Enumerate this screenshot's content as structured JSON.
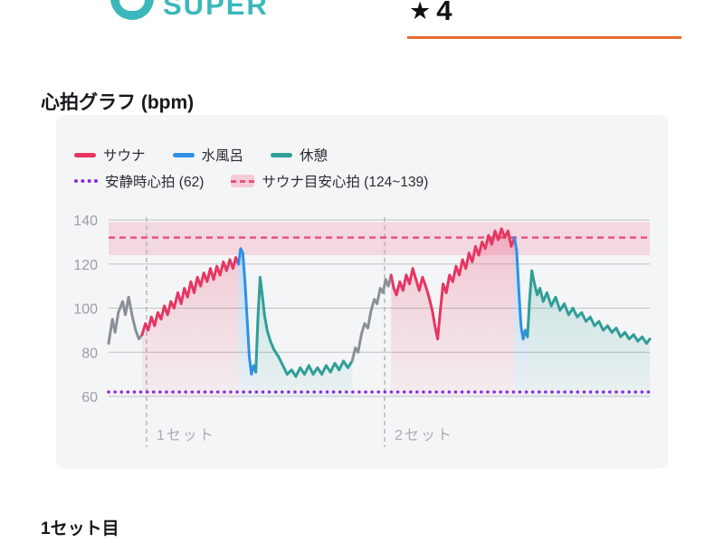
{
  "header": {
    "brand": "SUPER",
    "rating_star": "★",
    "rating_value": "4"
  },
  "sections": {
    "heart_rate_title": "心拍グラフ (bpm)",
    "set1_title": "1セット目"
  },
  "legend": {
    "row1": [
      {
        "label": "サウナ"
      },
      {
        "label": "水風呂"
      },
      {
        "label": "休憩"
      }
    ],
    "row2": [
      {
        "label": "安静時心拍 (62)"
      },
      {
        "label": "サウナ目安心拍 (124~139)"
      }
    ]
  },
  "colors": {
    "sauna": "#e73562",
    "water": "#2f8fe8",
    "rest": "#2f9e97",
    "gray": "#8b9097",
    "resting_line": "#8a2be2",
    "target_line": "#e8537a",
    "target_band": "#f2bed0",
    "accent_orange": "#e96a2d",
    "brand_teal": "#3ab8bc"
  },
  "chart_data": {
    "type": "line",
    "title": "心拍グラフ (bpm)",
    "ylabel": "bpm",
    "ylim": [
      60,
      140
    ],
    "xlim": [
      0,
      100
    ],
    "yticks": [
      60,
      80,
      100,
      120,
      140
    ],
    "resting_hr": 62,
    "target_range": {
      "min": 124,
      "max": 139,
      "mid_line": 132
    },
    "dividers": [
      {
        "x": 7,
        "label": "1セット"
      },
      {
        "x": 51,
        "label": "2セット"
      }
    ],
    "segments": [
      {
        "phase": "warmup",
        "color_key": "gray",
        "fill": false,
        "points": [
          [
            0,
            84
          ],
          [
            0.7,
            95
          ],
          [
            1.2,
            89
          ],
          [
            1.8,
            98
          ],
          [
            2.6,
            103
          ],
          [
            3.1,
            97
          ],
          [
            3.7,
            105
          ],
          [
            4.4,
            96
          ],
          [
            5,
            90
          ],
          [
            5.6,
            86
          ],
          [
            6.2,
            88
          ]
        ]
      },
      {
        "phase": "sauna-1",
        "color_key": "sauna",
        "fill": true,
        "points": [
          [
            6.2,
            88
          ],
          [
            6.8,
            93
          ],
          [
            7.3,
            90
          ],
          [
            7.9,
            96
          ],
          [
            8.5,
            92
          ],
          [
            9.1,
            98
          ],
          [
            9.7,
            95
          ],
          [
            10.3,
            101
          ],
          [
            10.9,
            97
          ],
          [
            11.5,
            103
          ],
          [
            12.1,
            100
          ],
          [
            12.8,
            107
          ],
          [
            13.4,
            102
          ],
          [
            14,
            109
          ],
          [
            14.6,
            105
          ],
          [
            15.2,
            112
          ],
          [
            15.8,
            107
          ],
          [
            16.4,
            114
          ],
          [
            17,
            110
          ],
          [
            17.6,
            116
          ],
          [
            18.2,
            112
          ],
          [
            18.8,
            118
          ],
          [
            19.4,
            113
          ],
          [
            20,
            119
          ],
          [
            20.6,
            115
          ],
          [
            21.2,
            121
          ],
          [
            21.8,
            117
          ],
          [
            22.4,
            122
          ],
          [
            23,
            118
          ],
          [
            23.5,
            123
          ],
          [
            24,
            120
          ]
        ]
      },
      {
        "phase": "water-1",
        "color_key": "water",
        "fill": true,
        "points": [
          [
            24,
            120
          ],
          [
            24.4,
            127
          ],
          [
            24.8,
            125
          ],
          [
            25.2,
            112
          ],
          [
            25.6,
            95
          ],
          [
            26,
            78
          ],
          [
            26.4,
            70
          ],
          [
            26.8,
            74
          ],
          [
            27.2,
            71
          ]
        ]
      },
      {
        "phase": "rest-1",
        "color_key": "rest",
        "fill": true,
        "points": [
          [
            27.2,
            71
          ],
          [
            27.6,
            96
          ],
          [
            28,
            114
          ],
          [
            28.4,
            106
          ],
          [
            28.8,
            97
          ],
          [
            29.3,
            90
          ],
          [
            29.9,
            85
          ],
          [
            30.6,
            81
          ],
          [
            31.4,
            78
          ],
          [
            32.2,
            74
          ],
          [
            33,
            70
          ],
          [
            33.8,
            72
          ],
          [
            34.6,
            69
          ],
          [
            35.4,
            73
          ],
          [
            36.2,
            70
          ],
          [
            37,
            74
          ],
          [
            37.8,
            70
          ],
          [
            38.6,
            73
          ],
          [
            39.4,
            70
          ],
          [
            40.2,
            74
          ],
          [
            41,
            71
          ],
          [
            41.8,
            75
          ],
          [
            42.6,
            72
          ],
          [
            43.4,
            76
          ],
          [
            44.2,
            73
          ],
          [
            45,
            76
          ]
        ]
      },
      {
        "phase": "transition",
        "color_key": "gray",
        "fill": false,
        "points": [
          [
            45,
            76
          ],
          [
            45.6,
            82
          ],
          [
            46.1,
            80
          ],
          [
            46.7,
            88
          ],
          [
            47.3,
            93
          ],
          [
            47.9,
            91
          ],
          [
            48.5,
            99
          ],
          [
            49.1,
            104
          ],
          [
            49.6,
            102
          ],
          [
            50.2,
            109
          ],
          [
            50.7,
            107
          ],
          [
            51.2,
            113
          ],
          [
            51.7,
            110
          ],
          [
            52.2,
            115
          ]
        ]
      },
      {
        "phase": "sauna-2",
        "color_key": "sauna",
        "fill": true,
        "points": [
          [
            52.2,
            115
          ],
          [
            52.7,
            109
          ],
          [
            53.2,
            106
          ],
          [
            53.8,
            112
          ],
          [
            54.4,
            108
          ],
          [
            55,
            115
          ],
          [
            55.6,
            111
          ],
          [
            56.2,
            118
          ],
          [
            56.8,
            113
          ],
          [
            57.4,
            108
          ],
          [
            58,
            114
          ],
          [
            58.6,
            110
          ],
          [
            59.2,
            105
          ],
          [
            59.8,
            99
          ],
          [
            60.3,
            92
          ],
          [
            60.8,
            86
          ],
          [
            61.3,
            99
          ],
          [
            61.8,
            111
          ],
          [
            62.4,
            107
          ],
          [
            63,
            115
          ],
          [
            63.6,
            112
          ],
          [
            64.2,
            119
          ],
          [
            64.8,
            115
          ],
          [
            65.4,
            122
          ],
          [
            66,
            118
          ],
          [
            66.6,
            125
          ],
          [
            67.2,
            121
          ],
          [
            67.8,
            128
          ],
          [
            68.4,
            124
          ],
          [
            69,
            130
          ],
          [
            69.6,
            127
          ],
          [
            70.2,
            133
          ],
          [
            70.8,
            129
          ],
          [
            71.4,
            135
          ],
          [
            72,
            131
          ],
          [
            72.6,
            136
          ],
          [
            73.2,
            132
          ],
          [
            73.8,
            135
          ],
          [
            74.4,
            128
          ],
          [
            75,
            132
          ]
        ]
      },
      {
        "phase": "water-2",
        "color_key": "water",
        "fill": true,
        "points": [
          [
            75,
            132
          ],
          [
            75.4,
            126
          ],
          [
            75.8,
            108
          ],
          [
            76.2,
            92
          ],
          [
            76.6,
            86
          ],
          [
            77,
            90
          ],
          [
            77.4,
            87
          ]
        ]
      },
      {
        "phase": "rest-2",
        "color_key": "rest",
        "fill": true,
        "points": [
          [
            77.4,
            87
          ],
          [
            77.8,
            104
          ],
          [
            78.2,
            117
          ],
          [
            78.7,
            111
          ],
          [
            79.2,
            106
          ],
          [
            79.7,
            109
          ],
          [
            80.3,
            103
          ],
          [
            81,
            107
          ],
          [
            81.8,
            101
          ],
          [
            82.6,
            105
          ],
          [
            83.4,
            99
          ],
          [
            84.2,
            102
          ],
          [
            85,
            97
          ],
          [
            85.8,
            100
          ],
          [
            86.6,
            96
          ],
          [
            87.4,
            98
          ],
          [
            88.2,
            94
          ],
          [
            89,
            96
          ],
          [
            89.8,
            92
          ],
          [
            90.6,
            94
          ],
          [
            91.4,
            90
          ],
          [
            92.2,
            92
          ],
          [
            93,
            89
          ],
          [
            93.8,
            91
          ],
          [
            94.6,
            87
          ],
          [
            95.4,
            89
          ],
          [
            96.2,
            86
          ],
          [
            97,
            88
          ],
          [
            97.8,
            85
          ],
          [
            98.6,
            87
          ],
          [
            99.4,
            84
          ],
          [
            100,
            86
          ]
        ]
      }
    ]
  }
}
